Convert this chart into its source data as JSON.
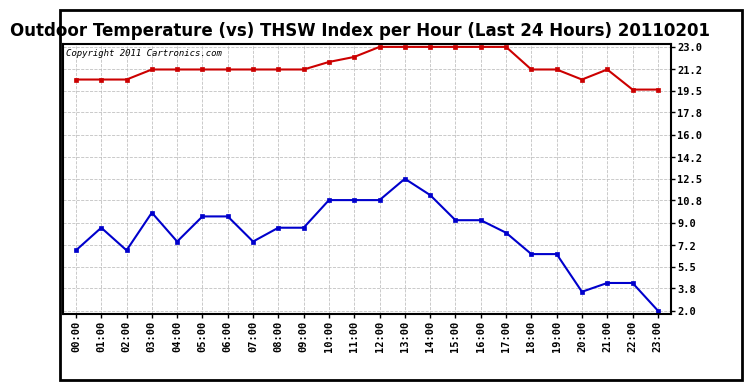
{
  "title": "Outdoor Temperature (vs) THSW Index per Hour (Last 24 Hours) 20110201",
  "copyright_text": "Copyright 2011 Cartronics.com",
  "hours": [
    "00:00",
    "01:00",
    "02:00",
    "03:00",
    "04:00",
    "05:00",
    "06:00",
    "07:00",
    "08:00",
    "09:00",
    "10:00",
    "11:00",
    "12:00",
    "13:00",
    "14:00",
    "15:00",
    "16:00",
    "17:00",
    "18:00",
    "19:00",
    "20:00",
    "21:00",
    "22:00",
    "23:00"
  ],
  "temp_red": [
    20.4,
    20.4,
    20.4,
    21.2,
    21.2,
    21.2,
    21.2,
    21.2,
    21.2,
    21.2,
    21.8,
    22.2,
    23.0,
    23.0,
    23.0,
    23.0,
    23.0,
    23.0,
    21.2,
    21.2,
    20.4,
    21.2,
    19.6,
    19.6
  ],
  "thsw_blue": [
    6.8,
    8.6,
    6.8,
    9.8,
    7.5,
    9.5,
    9.5,
    7.5,
    8.6,
    8.6,
    10.8,
    10.8,
    10.8,
    12.5,
    11.2,
    9.2,
    9.2,
    8.2,
    6.5,
    6.5,
    3.5,
    4.2,
    4.2,
    2.0
  ],
  "ylim_min": 2.0,
  "ylim_max": 23.0,
  "yticks": [
    2.0,
    3.8,
    5.5,
    7.2,
    9.0,
    10.8,
    12.5,
    14.2,
    16.0,
    17.8,
    19.5,
    21.2,
    23.0
  ],
  "red_color": "#cc0000",
  "blue_color": "#0000cc",
  "grid_color": "#bbbbbb",
  "bg_color": "#ffffff",
  "title_fontsize": 12,
  "tick_fontsize": 7.5,
  "copyright_fontsize": 6.5
}
